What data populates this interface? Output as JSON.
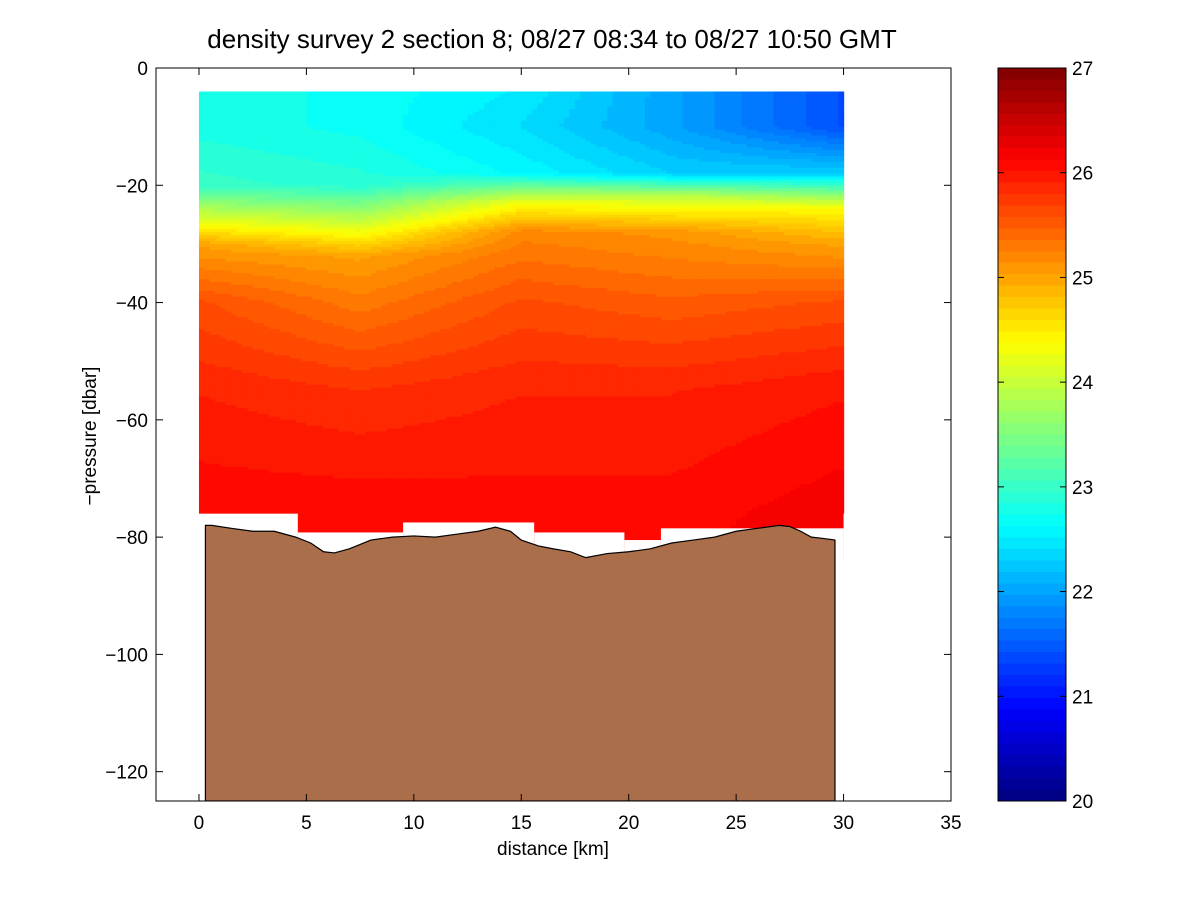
{
  "chart_data": {
    "type": "heatmap",
    "title": "density survey 2 section 8; 08/27 08:34 to 08/27 10:50 GMT",
    "xlabel": "distance [km]",
    "ylabel": "−pressure [dbar]",
    "xlim": [
      -2,
      35
    ],
    "ylim": [
      -125,
      0
    ],
    "x_ticks": [
      0,
      5,
      10,
      15,
      20,
      25,
      30,
      35
    ],
    "x_tick_labels": [
      "0",
      "5",
      "10",
      "15",
      "20",
      "25",
      "30",
      "35"
    ],
    "y_ticks": [
      0,
      -20,
      -40,
      -60,
      -80,
      -100,
      -120
    ],
    "y_tick_labels": [
      "0",
      "−20",
      "−40",
      "−60",
      "−80",
      "−100",
      "−120"
    ],
    "colorbar": {
      "range": [
        20,
        27
      ],
      "ticks": [
        20,
        21,
        22,
        23,
        24,
        25,
        26,
        27
      ],
      "tick_labels": [
        "20",
        "21",
        "22",
        "23",
        "24",
        "25",
        "26",
        "27"
      ],
      "colormap": "jet"
    },
    "data_extent": {
      "x": [
        0,
        30
      ],
      "pressure_top": -4,
      "pressure_bottom_left": -76,
      "pressure_bottom_right": -76
    },
    "density_profiles": [
      {
        "x": 0,
        "depths": [
          -4,
          -10,
          -20,
          -26,
          -30,
          -40,
          -55,
          -76
        ],
        "density": [
          22.8,
          22.8,
          23.0,
          24.2,
          25.0,
          25.6,
          25.9,
          26.1
        ]
      },
      {
        "x": 7.5,
        "depths": [
          -4,
          -10,
          -20,
          -28,
          -32,
          -40,
          -55,
          -76
        ],
        "density": [
          22.7,
          22.7,
          22.9,
          24.3,
          25.0,
          25.3,
          25.8,
          26.1
        ]
      },
      {
        "x": 15,
        "depths": [
          -4,
          -10,
          -18,
          -23,
          -28,
          -40,
          -55,
          -80
        ],
        "density": [
          22.5,
          22.4,
          22.6,
          24.3,
          25.2,
          25.6,
          25.9,
          26.1
        ]
      },
      {
        "x": 22,
        "depths": [
          -4,
          -10,
          -18,
          -22,
          -28,
          -40,
          -55,
          -80
        ],
        "density": [
          22.0,
          22.0,
          22.3,
          24.0,
          25.1,
          25.5,
          25.9,
          26.1
        ]
      },
      {
        "x": 30,
        "depths": [
          -4,
          -10,
          -18,
          -24,
          -30,
          -40,
          -55,
          -76
        ],
        "density": [
          21.4,
          21.4,
          22.3,
          24.4,
          25.0,
          25.6,
          26.0,
          26.2
        ]
      }
    ],
    "bathymetry": {
      "x": [
        0.3,
        0.6,
        1.5,
        2.5,
        3.5,
        4.5,
        5.2,
        5.8,
        6.3,
        7,
        8,
        9,
        10,
        11,
        12,
        13,
        13.8,
        14.5,
        15,
        15.8,
        16.5,
        17.3,
        18,
        19,
        20,
        21,
        22,
        23,
        24,
        25,
        26,
        27,
        27.5,
        28,
        28.5,
        29,
        29.6
      ],
      "depth": [
        -78,
        -78,
        -78.5,
        -79,
        -79,
        -80,
        -81,
        -82.5,
        -82.7,
        -82,
        -80.5,
        -80,
        -79.8,
        -80,
        -79.5,
        -79,
        -78.3,
        -79,
        -80.5,
        -81.5,
        -82,
        -82.5,
        -83.5,
        -82.8,
        -82.5,
        -82,
        -81,
        -80.5,
        -80,
        -79,
        -78.5,
        -78,
        -78.2,
        -79,
        -80,
        -80.2,
        -80.5
      ],
      "color": "#ab6e4b"
    }
  }
}
